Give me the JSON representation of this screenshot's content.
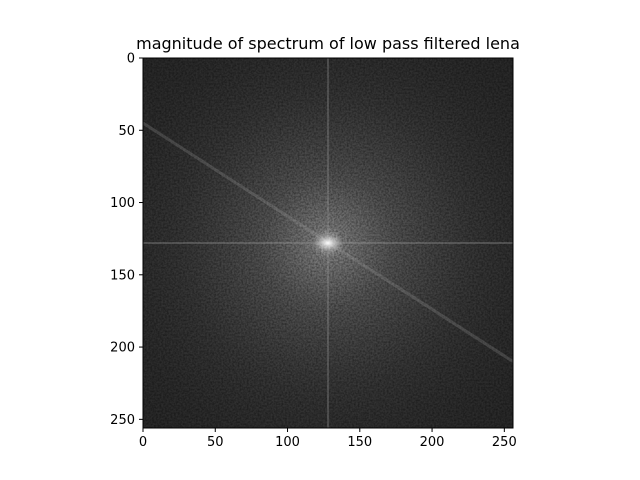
{
  "chart_data": {
    "type": "heatmap",
    "title": "magnitude of spectrum of low pass filtered lena",
    "xlabel": "",
    "ylabel": "",
    "xlim": [
      0,
      256
    ],
    "ylim": [
      256,
      0
    ],
    "image_size": [
      256,
      256
    ],
    "colormap": "gray",
    "origin": "upper-left",
    "x_ticks": [
      0,
      50,
      100,
      150,
      200,
      250
    ],
    "y_ticks": [
      0,
      50,
      100,
      150,
      200,
      250
    ],
    "grid": false,
    "legend": "none",
    "peak": {
      "x": 128,
      "y": 128
    },
    "features": [
      {
        "kind": "horizontal-line",
        "y": 128
      },
      {
        "kind": "vertical-line",
        "x": 128
      },
      {
        "kind": "diagonal-streak",
        "from": [
          0,
          45
        ],
        "to": [
          256,
          210
        ]
      }
    ],
    "colors": {
      "background_low": "#2a2a2a",
      "peak": "#f0f0f0"
    }
  }
}
